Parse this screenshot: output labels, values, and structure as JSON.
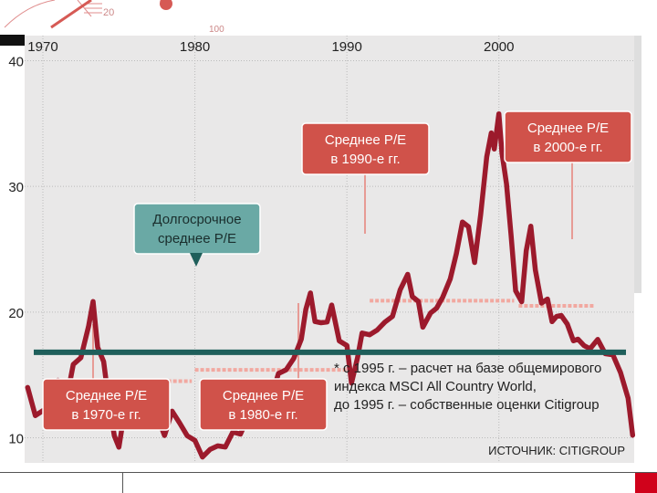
{
  "chart_data": {
    "type": "line",
    "x_ticks": [
      "1970",
      "1980",
      "1990",
      "2000"
    ],
    "y_ticks": [
      "10",
      "20",
      "30",
      "40"
    ],
    "ylim": [
      8,
      42
    ],
    "xlim": [
      1968.8,
      2008.9
    ],
    "grid": true,
    "series": [
      {
        "values": [
          [
            1969.0,
            14.0
          ],
          [
            1969.5,
            11.5
          ],
          [
            1970.0,
            12.5
          ],
          [
            1970.5,
            11.8
          ],
          [
            1971.0,
            14.5
          ],
          [
            1971.5,
            13.0
          ],
          [
            1972.0,
            15.5
          ],
          [
            1972.5,
            16.5
          ],
          [
            1973.0,
            19.0
          ],
          [
            1973.3,
            20.5
          ],
          [
            1973.6,
            17.5
          ],
          [
            1974.0,
            16.0
          ],
          [
            1974.3,
            13.0
          ],
          [
            1974.7,
            10.5
          ],
          [
            1975.0,
            9.0
          ],
          [
            1975.3,
            11.5
          ],
          [
            1975.7,
            12.5
          ],
          [
            1976.0,
            11.0
          ],
          [
            1976.5,
            12.0
          ],
          [
            1977.0,
            11.0
          ],
          [
            1977.5,
            11.5
          ],
          [
            1978.0,
            10.5
          ],
          [
            1978.5,
            12.0
          ],
          [
            1979.0,
            11.0
          ],
          [
            1979.5,
            10.5
          ],
          [
            1980.0,
            9.5
          ],
          [
            1980.5,
            8.5
          ],
          [
            1981.0,
            9.3
          ],
          [
            1981.5,
            9.0
          ],
          [
            1982.0,
            9.5
          ],
          [
            1982.5,
            10.5
          ],
          [
            1983.0,
            10.0
          ],
          [
            1983.5,
            12.0
          ],
          [
            1984.0,
            12.8
          ],
          [
            1984.5,
            12.0
          ],
          [
            1985.0,
            13.5
          ],
          [
            1985.5,
            14.8
          ],
          [
            1986.0,
            15.5
          ],
          [
            1986.5,
            16.5
          ],
          [
            1987.0,
            17.5
          ],
          [
            1987.3,
            20.5
          ],
          [
            1987.6,
            21.5
          ],
          [
            1987.9,
            19.0
          ],
          [
            1988.3,
            19.5
          ],
          [
            1988.7,
            19.0
          ],
          [
            1989.0,
            20.5
          ],
          [
            1989.5,
            18.0
          ],
          [
            1990.0,
            17.0
          ],
          [
            1990.3,
            14.5
          ],
          [
            1990.7,
            16.5
          ],
          [
            1991.0,
            18.0
          ],
          [
            1991.5,
            18.5
          ],
          [
            1992.0,
            18.5
          ],
          [
            1992.5,
            19.0
          ],
          [
            1993.0,
            20.0
          ],
          [
            1993.5,
            21.5
          ],
          [
            1994.0,
            23.0
          ],
          [
            1994.3,
            21.5
          ],
          [
            1994.7,
            20.5
          ],
          [
            1995.0,
            19.0
          ],
          [
            1995.5,
            20.0
          ],
          [
            1995.9,
            20.0
          ],
          [
            1996.3,
            21.5
          ],
          [
            1996.8,
            22.5
          ],
          [
            1997.2,
            24.5
          ],
          [
            1997.6,
            27.5
          ],
          [
            1998.0,
            26.5
          ],
          [
            1998.4,
            24.0
          ],
          [
            1998.8,
            28.0
          ],
          [
            1999.2,
            32.0
          ],
          [
            1999.5,
            34.5
          ],
          [
            1999.7,
            33.0
          ],
          [
            2000.0,
            35.5
          ],
          [
            2000.2,
            33.0
          ],
          [
            2000.5,
            30.0
          ],
          [
            2000.8,
            26.0
          ],
          [
            2001.1,
            22.0
          ],
          [
            2001.5,
            20.5
          ],
          [
            2001.8,
            25.0
          ],
          [
            2002.1,
            27.0
          ],
          [
            2002.4,
            23.0
          ],
          [
            2002.8,
            21.0
          ],
          [
            2003.2,
            21.0
          ],
          [
            2003.5,
            19.0
          ],
          [
            2003.8,
            20.0
          ],
          [
            2004.1,
            19.5
          ],
          [
            2004.5,
            19.0
          ],
          [
            2004.9,
            18.0
          ],
          [
            2005.2,
            17.5
          ],
          [
            2005.6,
            17.5
          ],
          [
            2006.0,
            17.2
          ],
          [
            2006.5,
            17.5
          ],
          [
            2007.0,
            17.0
          ],
          [
            2007.5,
            16.5
          ],
          [
            2008.0,
            15.0
          ],
          [
            2008.5,
            13.5
          ],
          [
            2008.8,
            10.2
          ]
        ]
      }
    ],
    "long_term_average": {
      "label": "Долгосрочное среднее P/E",
      "value": 16.8
    },
    "decade_averages": [
      {
        "label": "Среднее P/E в 1970-е гг.",
        "from": 1971.0,
        "to": 1979.8,
        "value": 14.5
      },
      {
        "label": "Среднее P/E в 1980-е гг.",
        "from": 1980.0,
        "to": 1990.5,
        "value": 15.4
      },
      {
        "label": "Среднее P/E в 1990-е гг.",
        "from": 1991.5,
        "to": 2001.0,
        "value": 20.9
      },
      {
        "label": "Среднее P/E в 2000-е гг.",
        "from": 2001.3,
        "to": 2006.3,
        "value": 20.5
      }
    ],
    "footnote": [
      "* с 1995 г. – расчет на базе общемирового",
      "индекса MSCI All Country World,",
      "до 1995 г. – собственные оценки Citigroup"
    ],
    "source": "ИСТОЧНИК: CITIGROUP"
  },
  "callouts": {
    "c70_l1": "Среднее P/E",
    "c70_l2": "в 1970-е гг.",
    "c80_l1": "Среднее P/E",
    "c80_l2": "в 1980-е гг.",
    "c90_l1": "Среднее P/E",
    "c90_l2": "в 1990-е гг.",
    "c00_l1": "Среднее P/E",
    "c00_l2": "в 2000-е гг.",
    "lt_l1": "Долгосрочное",
    "lt_l2": "среднее P/E"
  },
  "colors": {
    "series": "#9c1a2c",
    "average_line": "#1f5f5b",
    "decade_dots": "#f2a8a0",
    "callout_red": "#d0524a",
    "callout_teal": "#6aa9a5",
    "plot_bg": "#e9e8e8",
    "grid": "#bbbbbb"
  }
}
